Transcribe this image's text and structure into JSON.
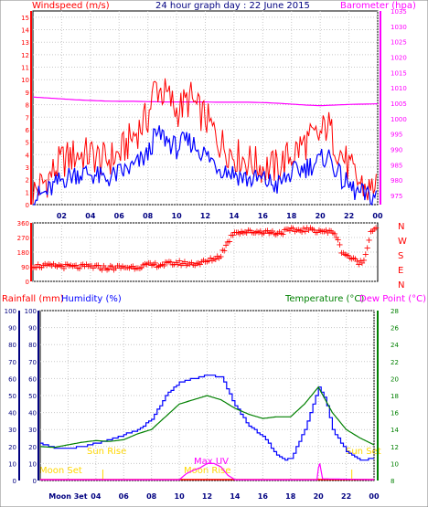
{
  "header": {
    "title": "24 hour graph day : 22 June 2015",
    "left_label": "Windspeed (m/s)",
    "right_label": "Barometer (hpa)"
  },
  "bottom_header": {
    "rainfall_label": "Rainfall (mm)",
    "humidity_label": "Humidity (%)",
    "temperature_label": "Temperature (°C)",
    "dewpoint_label": "Dew Point (°C)"
  },
  "annotations": {
    "moon_rise": "Moon Rise",
    "moon_set": "Moon Set",
    "sun_rise": "Sun Rise",
    "sun_set": "Sun Set",
    "max_uv": "Max UV"
  },
  "colors": {
    "wind_gust": "#ff0000",
    "wind_avg": "#0000ff",
    "barometer": "#ff00ff",
    "direction": "#ff0000",
    "humidity": "#0000ff",
    "temperature": "#008000",
    "dewpoint": "#ff00ff",
    "rainfall": "#ff0000",
    "axis_blue": "#000080",
    "sun": "#ffd700"
  },
  "chart_data": [
    {
      "type": "line",
      "title": "24 hour graph day : 22 June 2015",
      "xlabel": "",
      "x_ticks": [
        "02",
        "04",
        "06",
        "08",
        "10",
        "12",
        "14",
        "16",
        "18",
        "20",
        "22",
        "00"
      ],
      "left_axis": {
        "label": "Windspeed (m/s)",
        "range": [
          0,
          15.5
        ],
        "ticks": [
          0,
          1,
          2,
          3,
          4,
          5,
          6,
          7,
          8,
          9,
          10,
          11,
          12,
          13,
          14,
          15
        ]
      },
      "right_axis": {
        "label": "Barometer (hpa)",
        "range": [
          972,
          1035
        ],
        "ticks": [
          975,
          980,
          985,
          990,
          995,
          1000,
          1005,
          1010,
          1015,
          1020,
          1025,
          1030,
          1035
        ]
      },
      "series": [
        {
          "name": "Windspeed (m/s)",
          "role": "gust",
          "axis": "left",
          "x": [
            0,
            1,
            2,
            3,
            4,
            5,
            6,
            7,
            8,
            8.5,
            9,
            9.5,
            10,
            10.5,
            11,
            11.5,
            12,
            13,
            14,
            15,
            16,
            17,
            18,
            19,
            20,
            20.5,
            21,
            21.5,
            22,
            22.5,
            23,
            23.5,
            24
          ],
          "y": [
            1.0,
            2.0,
            3.5,
            4.0,
            4.0,
            3.5,
            4.0,
            5.5,
            7.0,
            9.5,
            9.0,
            8.5,
            7.5,
            8.0,
            8.5,
            7.5,
            7.0,
            5.0,
            4.0,
            3.5,
            3.0,
            3.0,
            4.0,
            5.0,
            5.5,
            6.5,
            5.0,
            4.0,
            3.0,
            2.0,
            1.5,
            1.0,
            2.5
          ]
        },
        {
          "name": "Windspeed (m/s)",
          "role": "average",
          "axis": "left",
          "x": [
            0,
            1,
            2,
            3,
            4,
            5,
            6,
            7,
            8,
            8.5,
            9,
            9.5,
            10,
            10.5,
            11,
            11.5,
            12,
            13,
            14,
            15,
            16,
            17,
            18,
            19,
            20,
            20.5,
            21,
            21.5,
            22,
            22.5,
            23,
            23.5,
            24
          ],
          "y": [
            0.5,
            1.0,
            2.0,
            2.5,
            2.5,
            2.0,
            2.5,
            3.0,
            4.0,
            5.5,
            5.5,
            5.0,
            4.5,
            5.0,
            5.0,
            4.5,
            4.0,
            3.0,
            2.5,
            2.0,
            2.0,
            1.5,
            2.5,
            3.0,
            3.5,
            4.0,
            3.0,
            2.0,
            1.5,
            1.0,
            0.8,
            0.5,
            1.0
          ]
        },
        {
          "name": "Barometer (hpa)",
          "axis": "right",
          "x": [
            0,
            1,
            2,
            3,
            4,
            5,
            6,
            7,
            8,
            9,
            10,
            11,
            12,
            13,
            14,
            15,
            16,
            17,
            18,
            19,
            20,
            21,
            22,
            23,
            24
          ],
          "y": [
            1007,
            1006.7,
            1006.4,
            1006.1,
            1005.9,
            1005.7,
            1005.6,
            1005.6,
            1005.5,
            1005.4,
            1005.4,
            1005.4,
            1005.4,
            1005.3,
            1005.3,
            1005.3,
            1005.2,
            1005.0,
            1004.7,
            1004.4,
            1004.2,
            1004.4,
            1004.6,
            1004.7,
            1004.8
          ]
        }
      ]
    },
    {
      "type": "scatter",
      "title": "",
      "right_label": "N W S E N",
      "y_ticks": [
        0,
        90,
        180,
        270,
        360
      ],
      "ylim": [
        0,
        360
      ],
      "series": [
        {
          "name": "Wind direction",
          "x": [
            0,
            1,
            2,
            3,
            4,
            5,
            6,
            7,
            8,
            9,
            10,
            11,
            12,
            13,
            13.5,
            14,
            15,
            16,
            17,
            18,
            19,
            20,
            20.5,
            21,
            21.5,
            22,
            22.5,
            23,
            23.5,
            24
          ],
          "y": [
            95,
            90,
            92,
            85,
            88,
            80,
            82,
            85,
            95,
            100,
            110,
            105,
            115,
            150,
            225,
            305,
            300,
            305,
            295,
            310,
            315,
            310,
            300,
            300,
            180,
            150,
            120,
            110,
            300,
            345
          ]
        }
      ]
    },
    {
      "type": "line",
      "title": "",
      "x_ticks": [
        "Moon 3et",
        "04",
        "06",
        "08",
        "10",
        "12",
        "14",
        "16",
        "18",
        "20",
        "22",
        "00"
      ],
      "left_axis_rain": {
        "label": "Rainfall (mm)",
        "range": [
          0,
          100
        ],
        "ticks": [
          0,
          10,
          20,
          30,
          40,
          50,
          60,
          70,
          80,
          90,
          100
        ]
      },
      "left_axis_humidity": {
        "label": "Humidity (%)",
        "range": [
          0,
          100
        ],
        "ticks": [
          0,
          10,
          20,
          30,
          40,
          50,
          60,
          70,
          80,
          90,
          100
        ]
      },
      "right_axis": {
        "label": "Temperature (°C)",
        "range": [
          8,
          28
        ],
        "ticks": [
          8,
          10,
          12,
          14,
          16,
          18,
          20,
          22,
          24,
          26,
          28
        ]
      },
      "series": [
        {
          "name": "Humidity (%)",
          "axis": "left",
          "x": [
            0,
            1,
            2,
            3,
            4,
            5,
            6,
            7,
            8,
            9,
            10,
            11,
            12,
            13,
            14,
            15,
            16,
            17,
            17.5,
            18,
            19,
            20,
            20.5,
            21,
            22,
            23,
            24
          ],
          "y": [
            22,
            19,
            19,
            20,
            22,
            24,
            27,
            30,
            36,
            50,
            58,
            60,
            62,
            61,
            44,
            32,
            26,
            15,
            12,
            13,
            30,
            55,
            47,
            30,
            17,
            12,
            13
          ]
        },
        {
          "name": "Temperature (°C)",
          "axis": "right",
          "x": [
            0,
            1,
            2,
            3,
            4,
            5,
            6,
            7,
            8,
            9,
            10,
            11,
            12,
            13,
            14,
            15,
            16,
            17,
            18,
            19,
            20,
            21,
            22,
            23,
            24
          ],
          "y": [
            12.0,
            11.9,
            12.2,
            12.5,
            12.7,
            12.6,
            12.8,
            13.5,
            14.0,
            15.5,
            17.0,
            17.5,
            18.0,
            17.5,
            16.5,
            15.8,
            15.3,
            15.5,
            15.5,
            17.0,
            19.0,
            16.0,
            14.0,
            13.0,
            12.2
          ]
        },
        {
          "name": "Dew Point (°C)",
          "axis": "right",
          "x": [
            0,
            10,
            10.5,
            11,
            11.5,
            12,
            12.5,
            13,
            13.5,
            14,
            19.9,
            20,
            20.1,
            20.3,
            24
          ],
          "y": [
            8.1,
            8.1,
            8.8,
            9.2,
            9.5,
            10.0,
            10.0,
            9.6,
            8.6,
            8.1,
            8.1,
            9.5,
            10.0,
            8.2,
            8.1
          ]
        },
        {
          "name": "Rainfall (mm)",
          "axis": "left",
          "x": [
            0,
            24
          ],
          "y": [
            0,
            0
          ]
        }
      ]
    }
  ]
}
